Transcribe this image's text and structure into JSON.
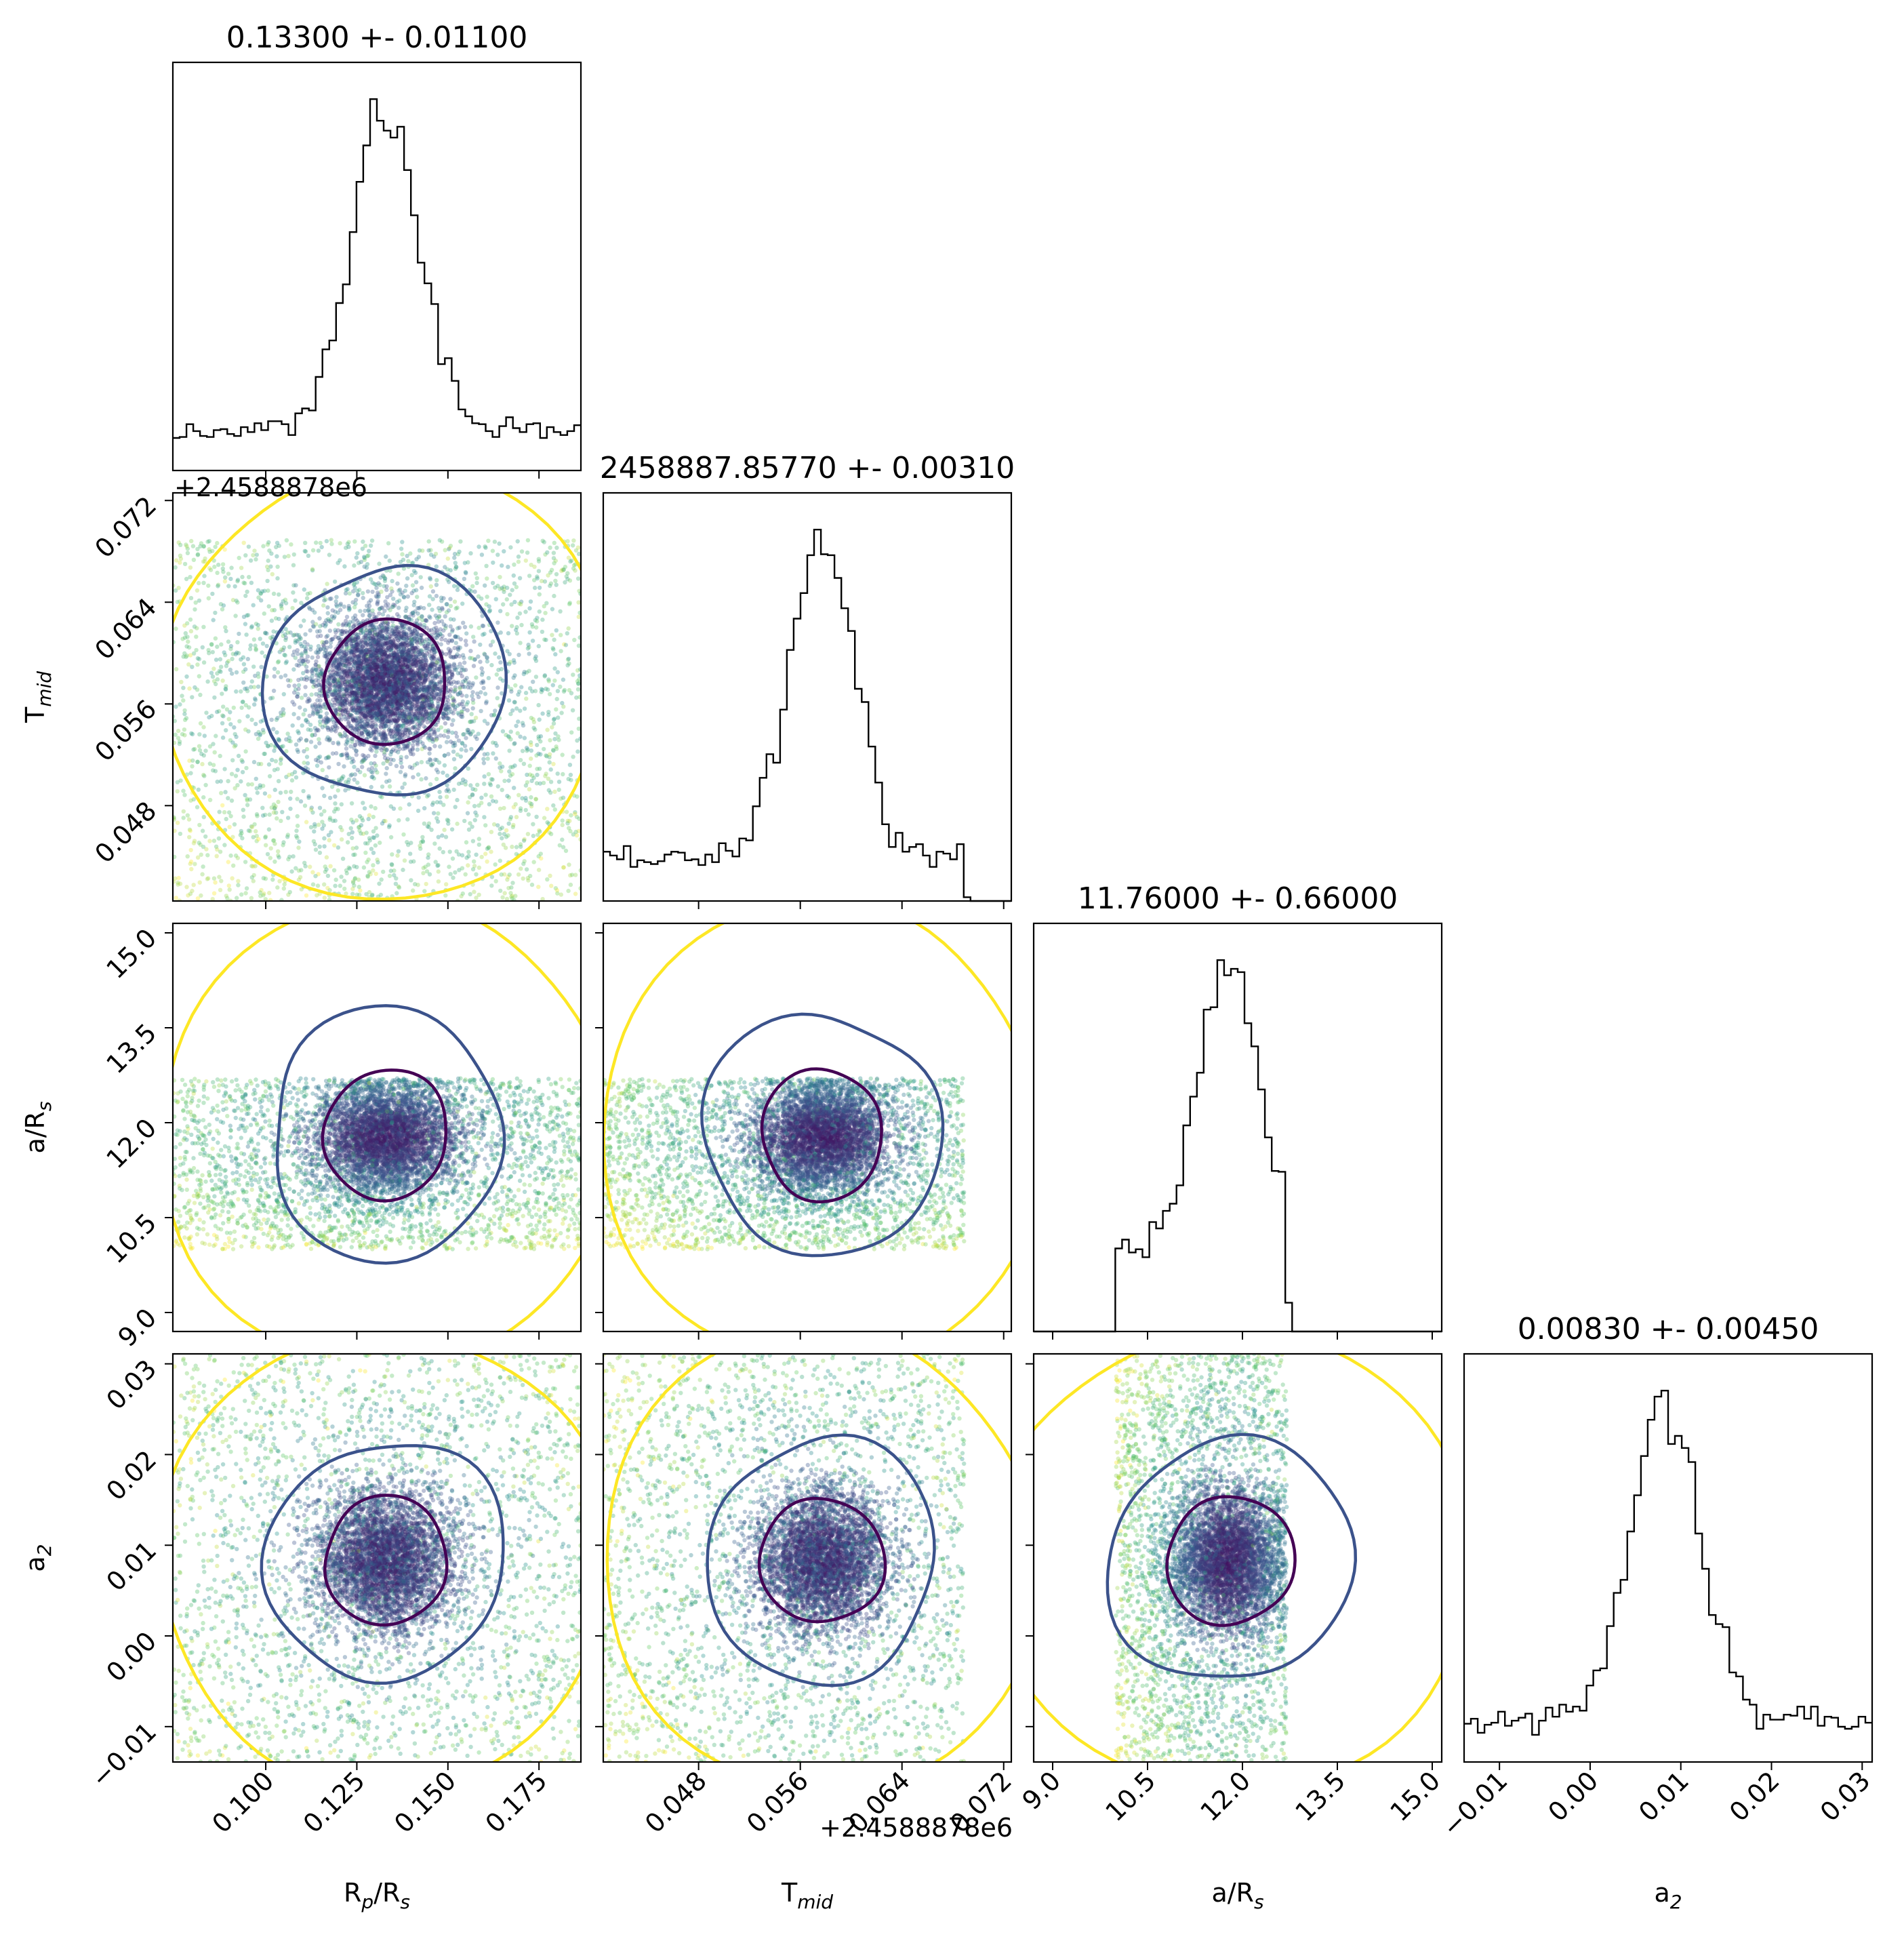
{
  "chart_data": {
    "type": "scatter",
    "subtype": "corner-plot",
    "parameters": [
      {
        "key": "rp",
        "label": "R_p/R_s",
        "label_main": "R",
        "label_sub": "p",
        "label_tail": "/R",
        "label_sub2": "s",
        "title": "0.13300 +- 0.01100",
        "range": [
          0.0745,
          0.1865
        ],
        "ticks": [
          0.1,
          0.125,
          0.15,
          0.175
        ],
        "tick_labels": [
          "0.100",
          "0.125",
          "0.150",
          "0.175"
        ],
        "mean": 0.133,
        "sigma": 0.011,
        "sample_range": [
          0.0745,
          0.1865
        ]
      },
      {
        "key": "tmid",
        "label": "T_mid",
        "label_main": "T",
        "label_sub": "mid",
        "label_tail": "",
        "label_sub2": "",
        "title": "2458887.85770 +- 0.00310",
        "offset_label": "+2.4588878e6",
        "range": [
          0.0405,
          0.0726
        ],
        "ticks": [
          0.048,
          0.056,
          0.064,
          0.072
        ],
        "tick_labels": [
          "0.048",
          "0.056",
          "0.064",
          "0.072"
        ],
        "mean": 0.0577,
        "sigma": 0.0031,
        "sample_range": [
          0.0405,
          0.0689
        ]
      },
      {
        "key": "ars",
        "label": "a/R_s",
        "label_main": "a/R",
        "label_sub": "s",
        "label_tail": "",
        "label_sub2": "",
        "title": "11.76000 +- 0.66000",
        "range": [
          8.7,
          15.15
        ],
        "ticks": [
          9.0,
          10.5,
          12.0,
          13.5,
          15.0
        ],
        "tick_labels": [
          "9.0",
          "10.5",
          "12.0",
          "13.5",
          "15.0"
        ],
        "mean": 11.76,
        "sigma": 0.66,
        "sample_range": [
          10.0,
          12.7
        ]
      },
      {
        "key": "a2",
        "label": "a_2",
        "label_main": "a",
        "label_sub": "2",
        "label_tail": "",
        "label_sub2": "",
        "title": "0.00830 +- 0.00450",
        "range": [
          -0.0139,
          0.0311
        ],
        "ticks": [
          -0.01,
          0.0,
          0.01,
          0.02,
          0.03
        ],
        "tick_labels": [
          "−0.01",
          "0.00",
          "0.01",
          "0.02",
          "0.03"
        ],
        "mean": 0.0083,
        "sigma": 0.0045,
        "sample_range": [
          -0.0139,
          0.0311
        ]
      }
    ],
    "offset_label": "+2.4588878e6",
    "point_colormap": "viridis",
    "contour_colors": [
      "#440154",
      "#3b528b",
      "#fde725"
    ],
    "grid": false
  }
}
